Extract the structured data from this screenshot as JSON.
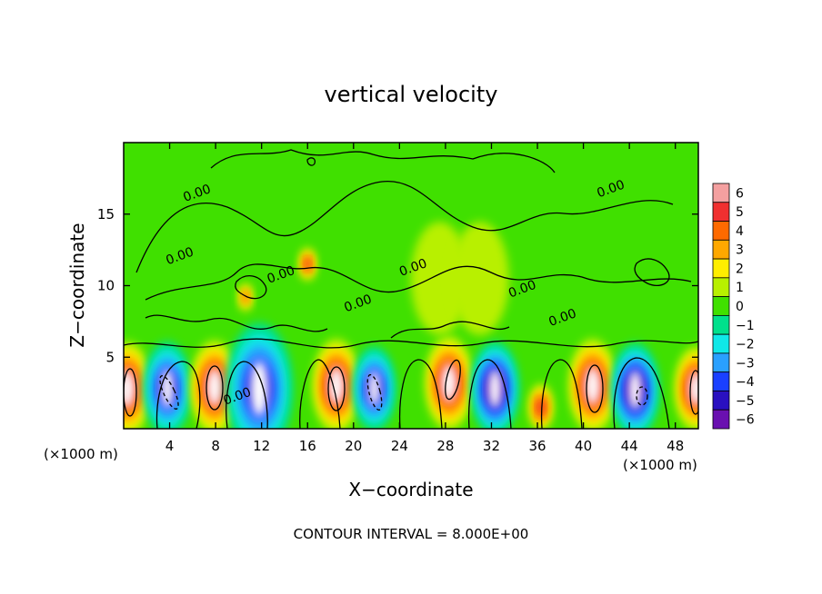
{
  "chart_data": {
    "type": "heatmap",
    "title": "vertical velocity",
    "xlabel": "X−coordinate",
    "ylabel": "Z−coordinate",
    "x_unit": "(×1000 m)",
    "z_unit": "(×1000 m)",
    "xlim": [
      0,
      50
    ],
    "ylim": [
      0,
      20
    ],
    "x_ticks": [
      4,
      8,
      12,
      16,
      20,
      24,
      28,
      32,
      36,
      40,
      44,
      48
    ],
    "y_ticks": [
      5,
      10,
      15
    ],
    "footer": "CONTOUR INTERVAL = 8.000E+00",
    "contour_labels": [
      {
        "text": "0.00",
        "x": 6.5,
        "z": 16.2
      },
      {
        "text": "0.00",
        "x": 5.0,
        "z": 11.8
      },
      {
        "text": "0.00",
        "x": 13.8,
        "z": 10.5
      },
      {
        "text": "0.00",
        "x": 20.5,
        "z": 8.5
      },
      {
        "text": "0.00",
        "x": 25.3,
        "z": 11.0
      },
      {
        "text": "0.00",
        "x": 34.8,
        "z": 9.5
      },
      {
        "text": "0.00",
        "x": 38.3,
        "z": 7.5
      },
      {
        "text": "0.00",
        "x": 42.5,
        "z": 16.5
      },
      {
        "text": "0.00",
        "x": 10.0,
        "z": 2.0
      }
    ],
    "cells": [
      {
        "x": 0.3,
        "z": 2.8,
        "w": 1.0,
        "value": 6
      },
      {
        "x": 3.8,
        "z": 2.8,
        "w": 1.0,
        "value": -5
      },
      {
        "x": 7.9,
        "z": 2.9,
        "w": 1.0,
        "value": 6
      },
      {
        "x": 11.8,
        "z": 2.8,
        "w": 1.4,
        "value": -5
      },
      {
        "x": 18.5,
        "z": 3.0,
        "w": 1.0,
        "value": 6
      },
      {
        "x": 21.8,
        "z": 2.8,
        "w": 0.9,
        "value": -5
      },
      {
        "x": 28.3,
        "z": 3.2,
        "w": 1.0,
        "value": 6
      },
      {
        "x": 32.3,
        "z": 2.8,
        "w": 1.0,
        "value": -6
      },
      {
        "x": 36.3,
        "z": 1.5,
        "w": 0.5,
        "value": 5
      },
      {
        "x": 40.8,
        "z": 3.0,
        "w": 1.0,
        "value": 6
      },
      {
        "x": 44.5,
        "z": 2.7,
        "w": 1.0,
        "value": -6
      },
      {
        "x": 49.8,
        "z": 2.8,
        "w": 0.9,
        "value": 6
      },
      {
        "x": 16.0,
        "z": 11.5,
        "w": 0.35,
        "value": 5
      },
      {
        "x": 10.6,
        "z": 9.2,
        "w": 0.3,
        "value": 4
      },
      {
        "x": 27.5,
        "z": 10.5,
        "w": 1.2,
        "value": 1
      },
      {
        "x": 31.0,
        "z": 10.5,
        "w": 1.2,
        "value": 1
      }
    ],
    "colorbar": {
      "levels": [
        6,
        5,
        4,
        3,
        2,
        1,
        0,
        -1,
        -2,
        -3,
        -4,
        -5,
        -6
      ],
      "labels": [
        "6",
        "5",
        "4",
        "3",
        "2",
        "1",
        "0",
        "−1",
        "−2",
        "−3",
        "−4",
        "−5",
        "−6"
      ],
      "colors": [
        "#f4a0a0",
        "#f03030",
        "#ff6a00",
        "#ffa800",
        "#ffee00",
        "#b8f000",
        "#40e000",
        "#00e08c",
        "#10e8e8",
        "#2aa0ff",
        "#1a40ff",
        "#2a10c0",
        "#6a10b0"
      ]
    }
  }
}
